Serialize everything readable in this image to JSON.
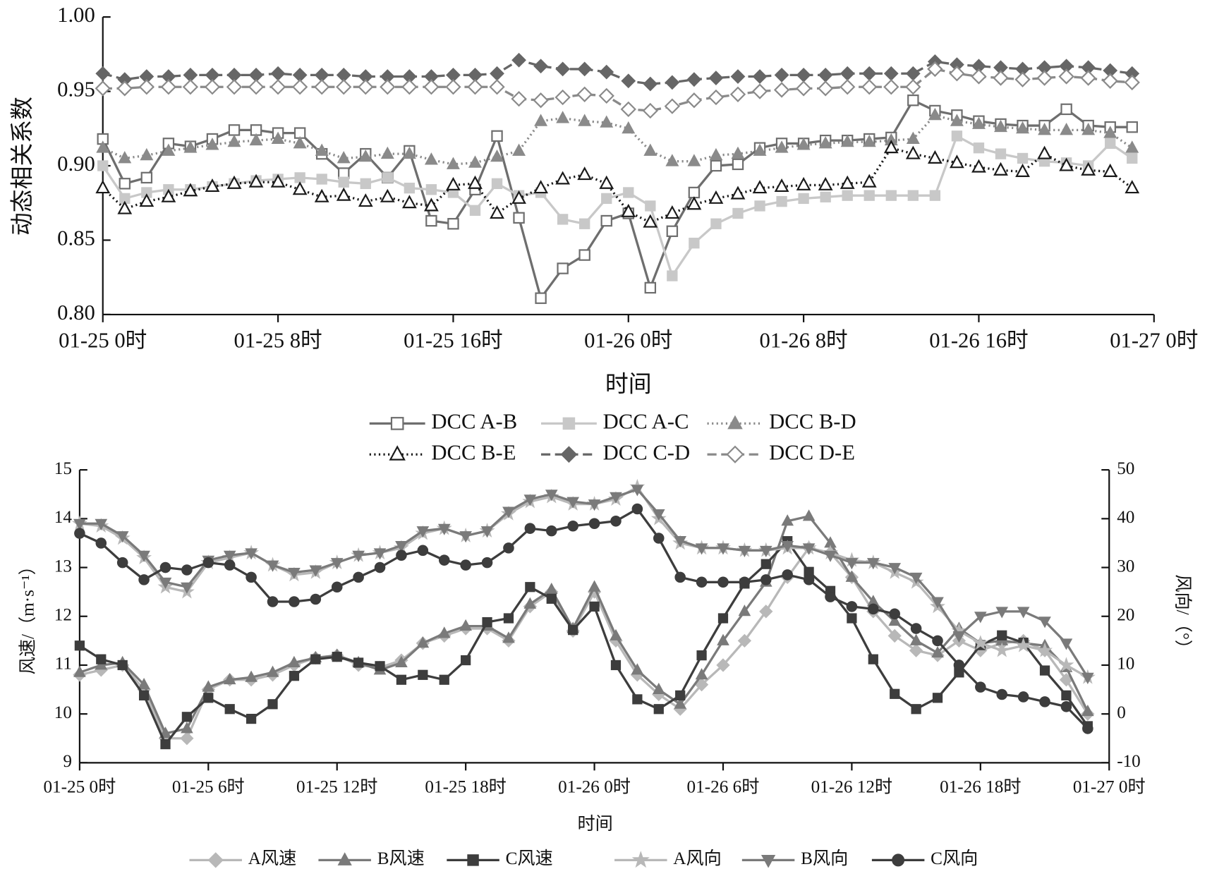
{
  "chart_data": [
    {
      "type": "line",
      "ylabel": "动态相关系数",
      "xlabel": "时间",
      "legend": "bottom",
      "x": [
        0,
        1,
        2,
        3,
        4,
        5,
        6,
        7,
        8,
        9,
        10,
        11,
        12,
        13,
        14,
        15,
        16,
        17,
        18,
        19,
        20,
        21,
        22,
        23,
        24,
        25,
        26,
        27,
        28,
        29,
        30,
        31,
        32,
        33,
        34,
        35,
        36,
        37,
        38,
        39,
        40,
        41,
        42,
        43,
        44,
        45,
        46,
        47
      ],
      "xlim": [
        0,
        48
      ],
      "xticks": [
        {
          "value": 0,
          "label": "01-25 0时"
        },
        {
          "value": 8,
          "label": "01-25 8时"
        },
        {
          "value": 16,
          "label": "01-25 16时"
        },
        {
          "value": 24,
          "label": "01-26 0时"
        },
        {
          "value": 32,
          "label": "01-26 8时"
        },
        {
          "value": 40,
          "label": "01-26 16时"
        },
        {
          "value": 48,
          "label": "01-27 0时"
        }
      ],
      "ylim": [
        0.8,
        1.0
      ],
      "yticks": [
        {
          "value": 0.8,
          "label": "0.80"
        },
        0.85,
        {
          "value": 0.9,
          "label": "0.90"
        },
        0.95,
        {
          "value": 1.0,
          "label": "1.00"
        }
      ],
      "series": [
        {
          "name": "DCC A-B",
          "color": "#6e6e6e",
          "marker": "square-open",
          "line_style": "solid",
          "values": [
            0.918,
            0.888,
            0.892,
            0.915,
            0.913,
            0.918,
            0.924,
            0.924,
            0.922,
            0.922,
            0.908,
            0.895,
            0.908,
            0.892,
            0.91,
            0.863,
            0.861,
            0.884,
            0.92,
            0.865,
            0.811,
            0.831,
            0.84,
            0.863,
            0.868,
            0.818,
            0.856,
            0.882,
            0.9,
            0.901,
            0.912,
            0.915,
            0.915,
            0.917,
            0.917,
            0.918,
            0.919,
            0.944,
            0.937,
            0.934,
            0.93,
            0.928,
            0.927,
            0.927,
            0.938,
            0.927,
            0.926,
            0.926
          ]
        },
        {
          "name": "DCC A-C",
          "color": "#c8c8c8",
          "marker": "square",
          "line_style": "solid",
          "values": [
            0.9,
            0.878,
            0.882,
            0.884,
            0.884,
            0.886,
            0.888,
            0.89,
            0.891,
            0.892,
            0.891,
            0.889,
            0.888,
            0.892,
            0.885,
            0.884,
            0.882,
            0.87,
            0.888,
            0.88,
            0.882,
            0.864,
            0.861,
            0.878,
            0.882,
            0.873,
            0.826,
            0.848,
            0.861,
            0.868,
            0.873,
            0.876,
            0.878,
            0.879,
            0.88,
            0.88,
            0.88,
            0.88,
            0.88,
            0.92,
            0.912,
            0.908,
            0.905,
            0.903,
            0.902,
            0.9,
            0.915,
            0.905
          ]
        },
        {
          "name": "DCC B-D",
          "color": "#8a8a8a",
          "marker": "triangle",
          "line_style": "dotted",
          "values": [
            0.912,
            0.905,
            0.907,
            0.91,
            0.912,
            0.914,
            0.916,
            0.917,
            0.918,
            0.915,
            0.91,
            0.905,
            0.906,
            0.908,
            0.908,
            0.904,
            0.901,
            0.902,
            0.906,
            0.91,
            0.93,
            0.932,
            0.93,
            0.929,
            0.925,
            0.91,
            0.903,
            0.903,
            0.907,
            0.908,
            0.91,
            0.912,
            0.914,
            0.915,
            0.916,
            0.916,
            0.917,
            0.918,
            0.934,
            0.93,
            0.928,
            0.926,
            0.925,
            0.924,
            0.924,
            0.924,
            0.922,
            0.912
          ]
        },
        {
          "name": "DCC B-E",
          "color": "#1a1a1a",
          "marker": "triangle-open",
          "line_style": "dotted",
          "values": [
            0.885,
            0.871,
            0.876,
            0.879,
            0.883,
            0.886,
            0.888,
            0.889,
            0.889,
            0.884,
            0.879,
            0.88,
            0.876,
            0.879,
            0.875,
            0.873,
            0.887,
            0.888,
            0.868,
            0.878,
            0.885,
            0.891,
            0.894,
            0.888,
            0.869,
            0.862,
            0.868,
            0.874,
            0.878,
            0.881,
            0.885,
            0.886,
            0.887,
            0.887,
            0.888,
            0.889,
            0.912,
            0.908,
            0.905,
            0.902,
            0.899,
            0.897,
            0.896,
            0.908,
            0.9,
            0.897,
            0.896,
            0.885
          ]
        },
        {
          "name": "DCC C-D",
          "color": "#666666",
          "marker": "diamond",
          "line_style": "dashed",
          "values": [
            0.962,
            0.958,
            0.96,
            0.96,
            0.961,
            0.961,
            0.961,
            0.961,
            0.962,
            0.961,
            0.961,
            0.961,
            0.96,
            0.96,
            0.96,
            0.96,
            0.961,
            0.961,
            0.962,
            0.971,
            0.967,
            0.965,
            0.965,
            0.963,
            0.957,
            0.955,
            0.956,
            0.958,
            0.959,
            0.96,
            0.96,
            0.961,
            0.961,
            0.961,
            0.962,
            0.962,
            0.962,
            0.962,
            0.97,
            0.968,
            0.967,
            0.966,
            0.965,
            0.966,
            0.967,
            0.966,
            0.964,
            0.962
          ]
        },
        {
          "name": "DCC D-E",
          "color": "#8a8a8a",
          "marker": "diamond-open",
          "line_style": "dashed",
          "values": [
            0.952,
            0.952,
            0.953,
            0.953,
            0.953,
            0.953,
            0.953,
            0.953,
            0.953,
            0.953,
            0.953,
            0.953,
            0.953,
            0.953,
            0.953,
            0.953,
            0.953,
            0.953,
            0.953,
            0.945,
            0.944,
            0.946,
            0.948,
            0.947,
            0.938,
            0.937,
            0.94,
            0.944,
            0.946,
            0.948,
            0.95,
            0.951,
            0.952,
            0.952,
            0.953,
            0.953,
            0.953,
            0.953,
            0.965,
            0.962,
            0.96,
            0.959,
            0.958,
            0.959,
            0.96,
            0.959,
            0.957,
            0.956
          ]
        }
      ]
    },
    {
      "type": "line",
      "ylabel": "风速/（m·s⁻¹）",
      "y2label": "风向/（°）",
      "xlabel": "时间",
      "legend": "bottom",
      "x": [
        0,
        1,
        2,
        3,
        4,
        5,
        6,
        7,
        8,
        9,
        10,
        11,
        12,
        13,
        14,
        15,
        16,
        17,
        18,
        19,
        20,
        21,
        22,
        23,
        24,
        25,
        26,
        27,
        28,
        29,
        30,
        31,
        32,
        33,
        34,
        35,
        36,
        37,
        38,
        39,
        40,
        41,
        42,
        43,
        44,
        45,
        46,
        47
      ],
      "xlim": [
        0,
        48
      ],
      "xticks": [
        {
          "value": 0,
          "label": "01-25 0时"
        },
        {
          "value": 6,
          "label": "01-25 6时"
        },
        {
          "value": 12,
          "label": "01-25 12时"
        },
        {
          "value": 18,
          "label": "01-25 18时"
        },
        {
          "value": 24,
          "label": "01-26 0时"
        },
        {
          "value": 30,
          "label": "01-26 6时"
        },
        {
          "value": 36,
          "label": "01-26 12时"
        },
        {
          "value": 42,
          "label": "01-26 18时"
        },
        {
          "value": 48,
          "label": "01-27 0时"
        }
      ],
      "ylim": [
        9,
        15
      ],
      "yticks": [
        9,
        10,
        11,
        12,
        13,
        14,
        15
      ],
      "y2lim": [
        -10,
        50
      ],
      "y2ticks": [
        -10,
        0,
        10,
        20,
        30,
        40,
        50
      ],
      "series": [
        {
          "name": "A风速",
          "color": "#b8b8b8",
          "marker": "diamond",
          "line_style": "solid",
          "values": [
            10.8,
            10.9,
            11.0,
            10.5,
            9.5,
            9.5,
            10.5,
            10.7,
            10.7,
            10.8,
            11.0,
            11.15,
            11.2,
            11.0,
            10.95,
            11.1,
            11.45,
            11.6,
            11.75,
            11.75,
            11.5,
            12.2,
            12.5,
            11.7,
            12.5,
            11.5,
            10.8,
            10.4,
            10.1,
            10.6,
            11.0,
            11.5,
            12.1,
            12.8,
            13.4,
            13.3,
            12.8,
            12.1,
            11.6,
            11.3,
            11.2,
            11.5,
            11.3,
            11.45,
            11.5,
            11.3,
            10.7,
            10.0
          ]
        },
        {
          "name": "B风速",
          "color": "#7a7a7a",
          "marker": "triangle",
          "line_style": "solid",
          "values": [
            10.85,
            11.0,
            11.05,
            10.6,
            9.6,
            9.7,
            10.55,
            10.7,
            10.75,
            10.85,
            11.05,
            11.15,
            11.2,
            11.05,
            10.9,
            11.05,
            11.45,
            11.65,
            11.8,
            11.8,
            11.55,
            12.25,
            12.55,
            11.75,
            12.6,
            11.6,
            10.9,
            10.5,
            10.2,
            10.8,
            11.5,
            12.1,
            12.7,
            13.95,
            14.05,
            13.5,
            12.8,
            12.3,
            11.9,
            11.5,
            11.25,
            11.75,
            11.45,
            11.5,
            11.45,
            11.4,
            10.95,
            10.05
          ]
        },
        {
          "name": "C风速",
          "color": "#3d3d3d",
          "marker": "square",
          "line_style": "solid",
          "values": [
            11.4,
            11.12,
            11.0,
            10.38,
            9.38,
            9.94,
            10.33,
            10.1,
            9.9,
            10.2,
            10.78,
            11.12,
            11.17,
            11.05,
            10.98,
            10.7,
            10.8,
            10.7,
            11.1,
            11.88,
            11.96,
            12.6,
            12.36,
            11.72,
            12.2,
            11.0,
            10.3,
            10.1,
            10.38,
            11.2,
            11.96,
            12.67,
            13.07,
            13.54,
            12.91,
            12.52,
            11.96,
            11.12,
            10.41,
            10.1,
            10.33,
            10.85,
            11.41,
            11.61,
            11.46,
            10.89,
            10.38,
            9.75
          ]
        },
        {
          "name": "A风向",
          "color": "#b8b8b8",
          "marker": "star",
          "line_style": "solid",
          "axis": "y2",
          "values": [
            39,
            38.5,
            36,
            32,
            26,
            25,
            31,
            32,
            33,
            30.5,
            28.5,
            29,
            31,
            32.5,
            33,
            34,
            37,
            38,
            36.5,
            37.5,
            41,
            43.5,
            44.5,
            43,
            43,
            44,
            46.5,
            40,
            35,
            34,
            34,
            33.5,
            33.5,
            34,
            34,
            33,
            31.5,
            31,
            29,
            27,
            22,
            17,
            14.5,
            13,
            14,
            13,
            10,
            7.5
          ]
        },
        {
          "name": "B风向",
          "color": "#7a7a7a",
          "marker": "triangle-down",
          "line_style": "solid",
          "axis": "y2",
          "values": [
            39,
            39,
            36.5,
            32.5,
            27,
            26,
            31.5,
            32.5,
            33,
            30.5,
            29,
            29.5,
            31,
            32.5,
            33,
            34.5,
            37.5,
            38,
            36.5,
            37.5,
            41.5,
            44,
            45,
            43.5,
            43,
            44.5,
            46,
            41,
            35.5,
            34,
            34,
            33.5,
            33.5,
            34.5,
            34,
            32.5,
            31,
            31,
            30,
            28,
            23,
            16,
            20,
            21,
            21,
            19,
            14.5,
            7.5
          ]
        },
        {
          "name": "C风向",
          "color": "#3d3d3d",
          "marker": "circle",
          "line_style": "solid",
          "axis": "y2",
          "values": [
            37,
            35,
            31,
            27.5,
            30,
            29.5,
            31,
            30.5,
            28,
            23,
            23,
            23.5,
            26,
            28,
            30,
            32.5,
            33.5,
            31.5,
            30.5,
            31,
            34,
            38,
            37.5,
            38.5,
            39,
            39.5,
            42,
            36,
            28,
            27,
            27,
            27,
            27.5,
            28.5,
            27.5,
            24,
            22,
            21.5,
            20.5,
            17.5,
            15,
            10,
            5.5,
            4,
            3.5,
            2.5,
            1.5,
            -3
          ]
        }
      ]
    }
  ]
}
